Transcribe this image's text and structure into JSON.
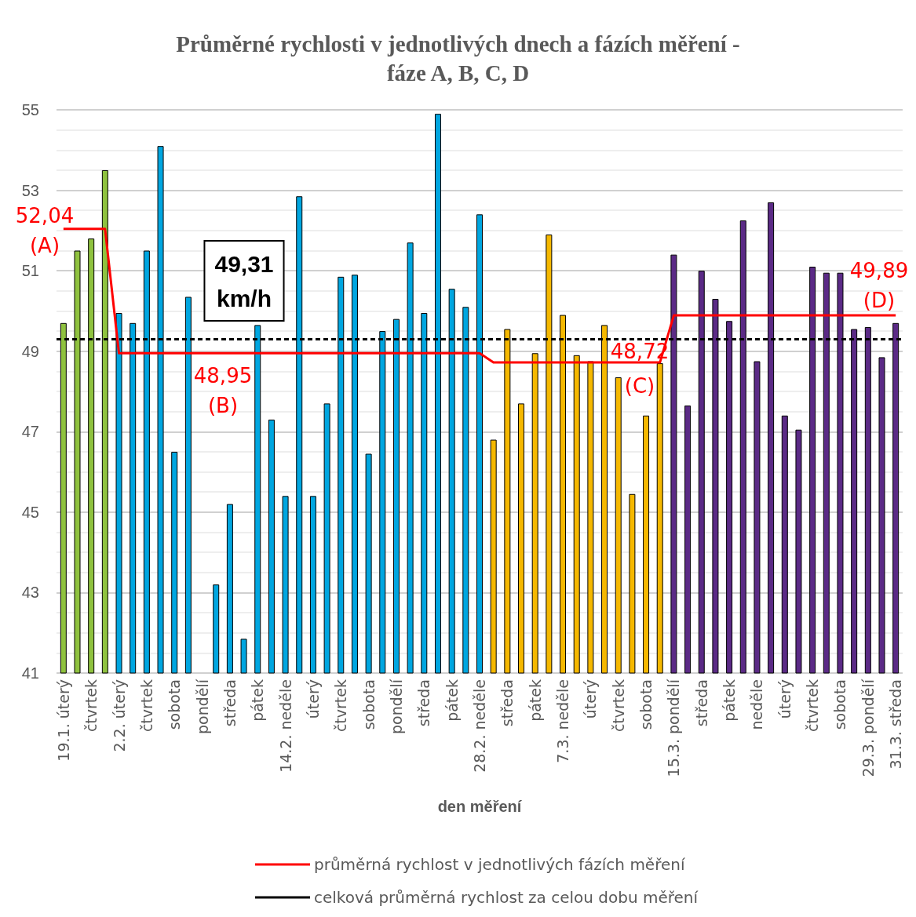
{
  "chart_data": {
    "type": "bar",
    "title": "Průměrné rychlosti v jednotlivých dnech a fázích měření -\nfáze A, B, C, D",
    "xlabel": "den měření",
    "categories": [
      "19.1. úterý",
      null,
      "čtvrtek",
      null,
      "2.2. úterý",
      null,
      "čtvrtek",
      null,
      "sobota",
      null,
      "pondělí",
      null,
      "středa",
      null,
      "pátek",
      null,
      "14.2. neděle",
      null,
      "úterý",
      null,
      "čtvrtek",
      null,
      "sobota",
      null,
      "pondělí",
      null,
      "středa",
      null,
      "pátek",
      null,
      "28.2. neděle",
      null,
      "středa",
      null,
      "pátek",
      null,
      "7.3. neděle",
      null,
      "úterý",
      null,
      "čtvrtek",
      null,
      "sobota",
      null,
      "15.3. pondělí",
      null,
      "středa",
      null,
      "pátek",
      null,
      "neděle",
      null,
      "úterý",
      null,
      "čtvrtek",
      null,
      "sobota",
      null,
      "29.3. pondělí",
      null,
      "31.3. středa"
    ],
    "series": [
      {
        "values": [
          49.7,
          51.5,
          51.8,
          53.5,
          49.95,
          49.7,
          51.5,
          54.1,
          46.5,
          50.35,
          null,
          43.2,
          45.2,
          41.85,
          49.65,
          47.3,
          45.4,
          52.85,
          45.4,
          47.7,
          50.85,
          50.9,
          46.45,
          49.5,
          49.8,
          51.7,
          49.95,
          54.9,
          50.55,
          50.1,
          52.4,
          46.8,
          49.55,
          47.7,
          48.95,
          51.9,
          49.9,
          48.9,
          48.75,
          49.65,
          48.35,
          45.45,
          47.4,
          48.7,
          51.4,
          47.65,
          51.0,
          50.3,
          49.75,
          52.25,
          48.75,
          52.7,
          47.4,
          47.05,
          51.1,
          50.95,
          50.95,
          49.55,
          49.6,
          48.85,
          49.7
        ],
        "colors": [
          "#8fc23f",
          "#8fc23f",
          "#8fc23f",
          "#8fc23f",
          "#00a6e0",
          "#00a6e0",
          "#00a6e0",
          "#00a6e0",
          "#00a6e0",
          "#00a6e0",
          "#00a6e0",
          "#00a6e0",
          "#00a6e0",
          "#00a6e0",
          "#00a6e0",
          "#00a6e0",
          "#00a6e0",
          "#00a6e0",
          "#00a6e0",
          "#00a6e0",
          "#00a6e0",
          "#00a6e0",
          "#00a6e0",
          "#00a6e0",
          "#00a6e0",
          "#00a6e0",
          "#00a6e0",
          "#00a6e0",
          "#00a6e0",
          "#00a6e0",
          "#00a6e0",
          "#f5b800",
          "#f5b800",
          "#f5b800",
          "#f5b800",
          "#f5b800",
          "#f5b800",
          "#f5b800",
          "#f5b800",
          "#f5b800",
          "#f5b800",
          "#f5b800",
          "#f5b800",
          "#f5b800",
          "#5b2a86",
          "#5b2a86",
          "#5b2a86",
          "#5b2a86",
          "#5b2a86",
          "#5b2a86",
          "#5b2a86",
          "#5b2a86",
          "#5b2a86",
          "#5b2a86",
          "#5b2a86",
          "#5b2a86",
          "#5b2a86",
          "#5b2a86",
          "#5b2a86",
          "#5b2a86",
          "#5b2a86"
        ]
      },
      {
        "type": "line",
        "name": "průměrná rychlost v jednotlivých fázích měření",
        "color": "#ff0000",
        "values": [
          52.04,
          52.04,
          52.04,
          52.04,
          48.95,
          48.95,
          48.95,
          48.95,
          48.95,
          48.95,
          48.95,
          48.95,
          48.95,
          48.95,
          48.95,
          48.95,
          48.95,
          48.95,
          48.95,
          48.95,
          48.95,
          48.95,
          48.95,
          48.95,
          48.95,
          48.95,
          48.95,
          48.95,
          48.95,
          48.95,
          48.95,
          48.72,
          48.72,
          48.72,
          48.72,
          48.72,
          48.72,
          48.72,
          48.72,
          48.72,
          48.72,
          48.72,
          48.72,
          48.72,
          49.89,
          49.89,
          49.89,
          49.89,
          49.89,
          49.89,
          49.89,
          49.89,
          49.89,
          49.89,
          49.89,
          49.89,
          49.89,
          49.89,
          49.89,
          49.89,
          49.89
        ]
      }
    ],
    "ref_lines": [
      {
        "axis": "y",
        "value": 49.31,
        "label": "celková průměrná rychlost za celou dobu měření",
        "color": "#000000",
        "line_style": "dashed"
      }
    ],
    "annotations": [
      "52,04\n(A)",
      "48,95\n(B)",
      "48,72\n(C)",
      "49,89\n(D)",
      "49,31\nkm/h"
    ],
    "ylim": [
      41,
      55
    ],
    "yticks": [
      41,
      43,
      45,
      47,
      49,
      51,
      53,
      55
    ],
    "grid": "y",
    "legend": "bottom",
    "marker": "none"
  }
}
